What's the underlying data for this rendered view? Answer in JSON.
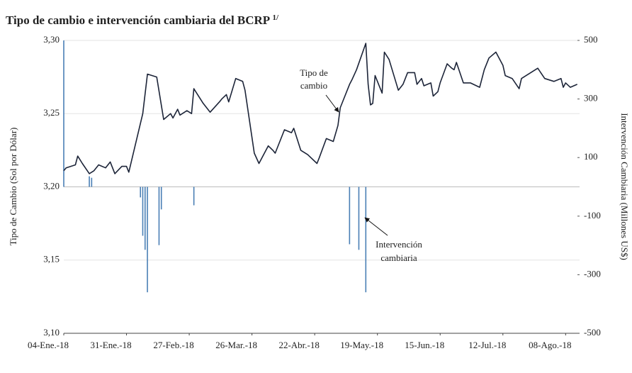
{
  "chart_data": {
    "type": "line_bar",
    "title": "Tipo de cambio e intervención cambiaria del BCRP",
    "title_note": "1/",
    "y_label": "Tipo de Cambio (Sol por Dólar)",
    "y2_label": "Intervención Cambiaria (Millones US$)",
    "xlim": [
      "2018-01-04",
      "2018-08-14"
    ],
    "xticks": [
      {
        "value": "2018-01-04",
        "label": "04-Ene.-18"
      },
      {
        "value": "2018-01-31",
        "label": "31-Ene.-18"
      },
      {
        "value": "2018-02-27",
        "label": "27-Feb.-18"
      },
      {
        "value": "2018-03-26",
        "label": "26-Mar.-18"
      },
      {
        "value": "2018-04-22",
        "label": "22-Abr.-18"
      },
      {
        "value": "2018-05-19",
        "label": "19-May.-18"
      },
      {
        "value": "2018-06-15",
        "label": "15-Jun.-18"
      },
      {
        "value": "2018-07-12",
        "label": "12-Jul.-18"
      },
      {
        "value": "2018-08-08",
        "label": "08-Ago.-18"
      }
    ],
    "ylim": [
      3.1,
      3.3
    ],
    "yticks": [
      {
        "value": 3.1,
        "label": "3,10"
      },
      {
        "value": 3.15,
        "label": "3,15"
      },
      {
        "value": 3.2,
        "label": "3,20"
      },
      {
        "value": 3.25,
        "label": "3,25"
      },
      {
        "value": 3.3,
        "label": "3,30"
      }
    ],
    "y2lim": [
      -500,
      500
    ],
    "y2ticks": [
      -500,
      -300,
      -100,
      100,
      300,
      500
    ],
    "grid": true,
    "series": [
      {
        "name": "Tipo de cambio",
        "type": "line",
        "color": "#1c2438",
        "x": [
          "2018-01-04",
          "2018-01-05",
          "2018-01-09",
          "2018-01-10",
          "2018-01-12",
          "2018-01-15",
          "2018-01-17",
          "2018-01-19",
          "2018-01-22",
          "2018-01-24",
          "2018-01-26",
          "2018-01-29",
          "2018-01-31",
          "2018-02-01",
          "2018-02-07",
          "2018-02-09",
          "2018-02-13",
          "2018-02-16",
          "2018-02-19",
          "2018-02-20",
          "2018-02-22",
          "2018-02-23",
          "2018-02-26",
          "2018-02-28",
          "2018-03-01",
          "2018-03-05",
          "2018-03-08",
          "2018-03-12",
          "2018-03-13",
          "2018-03-15",
          "2018-03-16",
          "2018-03-19",
          "2018-03-22",
          "2018-03-23",
          "2018-03-27",
          "2018-03-29",
          "2018-04-02",
          "2018-04-04",
          "2018-04-05",
          "2018-04-09",
          "2018-04-12",
          "2018-04-13",
          "2018-04-16",
          "2018-04-19",
          "2018-04-23",
          "2018-04-24",
          "2018-04-27",
          "2018-04-30",
          "2018-05-02",
          "2018-05-03",
          "2018-05-07",
          "2018-05-08",
          "2018-05-10",
          "2018-05-14",
          "2018-05-15",
          "2018-05-16",
          "2018-05-17",
          "2018-05-18",
          "2018-05-21",
          "2018-05-22",
          "2018-05-24",
          "2018-05-28",
          "2018-05-30",
          "2018-06-01",
          "2018-06-04",
          "2018-06-05",
          "2018-06-07",
          "2018-06-08",
          "2018-06-11",
          "2018-06-12",
          "2018-06-14",
          "2018-06-15",
          "2018-06-18",
          "2018-06-20",
          "2018-06-21",
          "2018-06-22",
          "2018-06-25",
          "2018-06-28",
          "2018-07-02",
          "2018-07-04",
          "2018-07-06",
          "2018-07-09",
          "2018-07-12",
          "2018-07-13",
          "2018-07-16",
          "2018-07-19",
          "2018-07-20",
          "2018-07-27",
          "2018-07-30",
          "2018-08-03",
          "2018-08-06",
          "2018-08-07",
          "2018-08-08",
          "2018-08-10",
          "2018-08-13"
        ],
        "values": [
          3.211,
          3.213,
          3.215,
          3.221,
          3.216,
          3.209,
          3.211,
          3.215,
          3.213,
          3.217,
          3.209,
          3.214,
          3.214,
          3.21,
          3.25,
          3.277,
          3.275,
          3.246,
          3.25,
          3.247,
          3.253,
          3.249,
          3.252,
          3.25,
          3.267,
          3.257,
          3.251,
          3.258,
          3.26,
          3.263,
          3.258,
          3.274,
          3.272,
          3.266,
          3.223,
          3.216,
          3.228,
          3.225,
          3.223,
          3.239,
          3.237,
          3.24,
          3.225,
          3.222,
          3.216,
          3.22,
          3.233,
          3.231,
          3.242,
          3.254,
          3.27,
          3.273,
          3.28,
          3.298,
          3.27,
          3.256,
          3.257,
          3.276,
          3.264,
          3.292,
          3.287,
          3.266,
          3.27,
          3.278,
          3.278,
          3.27,
          3.274,
          3.269,
          3.271,
          3.262,
          3.265,
          3.271,
          3.284,
          3.281,
          3.28,
          3.285,
          3.271,
          3.271,
          3.268,
          3.28,
          3.288,
          3.292,
          3.283,
          3.276,
          3.274,
          3.267,
          3.274,
          3.281,
          3.274,
          3.272,
          3.274,
          3.268,
          3.271,
          3.268,
          3.27
        ]
      },
      {
        "name": "Intervención cambiaria",
        "type": "bar",
        "axis": "y2",
        "color": "#4a7fb5",
        "x": [
          "2018-01-04",
          "2018-01-15",
          "2018-01-16",
          "2018-02-06",
          "2018-02-07",
          "2018-02-08",
          "2018-02-09",
          "2018-02-14",
          "2018-02-15",
          "2018-03-01",
          "2018-05-07",
          "2018-05-11",
          "2018-05-14"
        ],
        "values": [
          500,
          36,
          31,
          -36,
          -167,
          -215,
          -360,
          -199,
          -77,
          -63,
          -196,
          -215,
          -360
        ]
      }
    ],
    "annotations": [
      {
        "lines": [
          "Tipo de",
          "cambio"
        ]
      },
      {
        "lines": [
          "Intervención",
          "cambiaria"
        ]
      }
    ]
  }
}
